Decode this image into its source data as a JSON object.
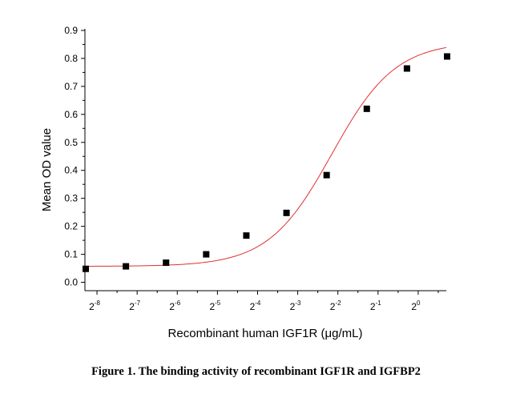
{
  "chart_data": {
    "type": "scatter",
    "xlabel": "Recombinant human IGF1R (μg/mL)",
    "ylabel": "Mean OD value",
    "x_scale": "log2",
    "x_tick_base": "2",
    "x_ticks": [
      -8,
      -7,
      -6,
      -5,
      -4,
      -3,
      -2,
      -1,
      0
    ],
    "x_tick_labels": [
      "2-8",
      "2-7",
      "2-6",
      "2-5",
      "2-4",
      "2-3",
      "2-2",
      "2-1",
      "20"
    ],
    "xlim": [
      -8.3,
      0.7
    ],
    "ylim": [
      -0.03,
      0.9
    ],
    "y_ticks": [
      0.0,
      0.1,
      0.2,
      0.3,
      0.4,
      0.5,
      0.6,
      0.7,
      0.8,
      0.9
    ],
    "y_tick_labels": [
      "0.0",
      "0.1",
      "0.2",
      "0.3",
      "0.4",
      "0.5",
      "0.6",
      "0.7",
      "0.8",
      "0.9"
    ],
    "grid": false,
    "legend": "none",
    "series": [
      {
        "marker": "square",
        "color": "#000000",
        "x_log2": [
          -8.28,
          -7.28,
          -6.28,
          -5.28,
          -4.28,
          -3.28,
          -2.28,
          -1.28,
          -0.28,
          0.72
        ],
        "y": [
          0.048,
          0.057,
          0.07,
          0.1,
          0.167,
          0.248,
          0.383,
          0.62,
          0.764,
          0.807
        ]
      }
    ],
    "fit_curve": {
      "type": "four-parameter-logistic",
      "color": "#e03030",
      "bottom": 0.057,
      "top": 0.86,
      "log2_ec50": -2.15,
      "slope_per_log2": 0.79
    }
  },
  "caption": "Figure 1. The binding activity of recombinant IGF1R and IGFBP2"
}
